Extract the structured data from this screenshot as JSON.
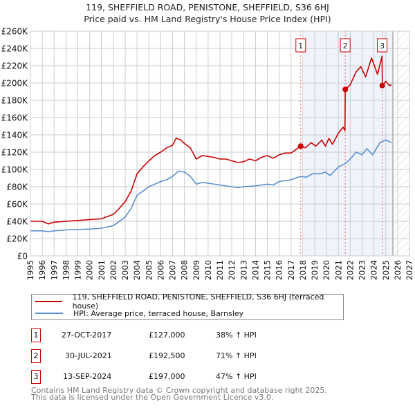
{
  "title_line1": "119, SHEFFIELD ROAD, PENISTONE, SHEFFIELD, S36 6HJ",
  "title_line2": "Price paid vs. HM Land Registry's House Price Index (HPI)",
  "colors": {
    "property": "#cc0000",
    "hpi": "#5b8fd0",
    "shade": "#eef3fc",
    "grid": "#cccccc"
  },
  "chart_data": {
    "type": "line",
    "title": "Price paid vs. HM Land Registry's House Price Index (HPI)",
    "xlim": [
      1995,
      2027
    ],
    "ylim": [
      0,
      260000
    ],
    "grid": true,
    "x_ticks": [
      "1995",
      "1996",
      "1997",
      "1998",
      "1999",
      "2000",
      "2001",
      "2002",
      "2003",
      "2004",
      "2005",
      "2006",
      "2007",
      "2008",
      "2009",
      "2010",
      "2011",
      "2012",
      "2013",
      "2014",
      "2015",
      "2016",
      "2017",
      "2018",
      "2019",
      "2020",
      "2021",
      "2022",
      "2023",
      "2024",
      "2025",
      "2026",
      "2027"
    ],
    "y_ticks": [
      {
        "v": 0,
        "label": "£0"
      },
      {
        "v": 20000,
        "label": "£20K"
      },
      {
        "v": 40000,
        "label": "£40K"
      },
      {
        "v": 60000,
        "label": "£60K"
      },
      {
        "v": 80000,
        "label": "£80K"
      },
      {
        "v": 100000,
        "label": "£100K"
      },
      {
        "v": 120000,
        "label": "£120K"
      },
      {
        "v": 140000,
        "label": "£140K"
      },
      {
        "v": 160000,
        "label": "£160K"
      },
      {
        "v": 180000,
        "label": "£180K"
      },
      {
        "v": 200000,
        "label": "£200K"
      },
      {
        "v": 220000,
        "label": "£220K"
      },
      {
        "v": 240000,
        "label": "£240K"
      },
      {
        "v": 260000,
        "label": "£260K"
      }
    ],
    "shaded_range": [
      2018.1,
      2025.6
    ],
    "forecast_start": 2025.6,
    "series": [
      {
        "name": "119, SHEFFIELD ROAD, PENISTONE, SHEFFIELD, S36 6HJ (terraced house)",
        "color": "#cc0000",
        "x": [
          1995,
          1996,
          1996.5,
          1997,
          1998,
          1999,
          2000,
          2001,
          2002,
          2002.5,
          2003,
          2003.5,
          2004,
          2004.5,
          2005,
          2005.5,
          2006,
          2006.5,
          2007,
          2007.3,
          2007.7,
          2008,
          2008.5,
          2009,
          2009.5,
          2010,
          2010.5,
          2011,
          2011.5,
          2012,
          2012.5,
          2013,
          2013.5,
          2014,
          2014.5,
          2015,
          2015.5,
          2016,
          2016.5,
          2017,
          2017.82,
          2018.2,
          2018.7,
          2019.1,
          2019.6,
          2019.9,
          2020.2,
          2020.5,
          2021,
          2021.4,
          2021.55,
          2021.58,
          2022,
          2022.5,
          2022.9,
          2023.3,
          2023.8,
          2024.3,
          2024.68,
          2024.71,
          2025,
          2025.3,
          2025.5
        ],
        "y": [
          40000,
          40000,
          37000,
          39000,
          40000,
          41000,
          42000,
          43000,
          48000,
          55000,
          63000,
          75000,
          95000,
          103000,
          110000,
          116000,
          120000,
          125000,
          128000,
          136000,
          134000,
          130000,
          125000,
          112000,
          116000,
          115000,
          114000,
          112000,
          112000,
          110000,
          108000,
          109000,
          112000,
          110000,
          114000,
          116000,
          113000,
          117000,
          119000,
          119000,
          127000,
          125000,
          131000,
          127000,
          134000,
          127000,
          136000,
          129000,
          142000,
          149000,
          145000,
          192500,
          198000,
          213000,
          219000,
          207000,
          229000,
          210000,
          231000,
          197000,
          202000,
          197000,
          198000
        ]
      },
      {
        "name": "HPI: Average price, terraced house, Barnsley",
        "color": "#5b8fd0",
        "x": [
          1995,
          1996,
          1996.5,
          1997,
          1998,
          2000,
          2001,
          2002,
          2003,
          2003.5,
          2004,
          2004.5,
          2005,
          2006,
          2006.5,
          2007,
          2007.5,
          2008,
          2008.5,
          2009,
          2009.5,
          2010,
          2011,
          2012,
          2012.5,
          2013,
          2014,
          2015,
          2015.5,
          2016,
          2017,
          2017.82,
          2018.3,
          2018.8,
          2019.5,
          2019.9,
          2020.3,
          2021,
          2021.6,
          2022,
          2022.5,
          2023,
          2023.4,
          2023.9,
          2024.5,
          2025,
          2025.5
        ],
        "y": [
          29000,
          29000,
          28000,
          29000,
          30000,
          31000,
          32000,
          35000,
          45000,
          55000,
          70000,
          75000,
          80000,
          86000,
          88000,
          92000,
          98000,
          97000,
          92000,
          83000,
          85000,
          84000,
          82000,
          80000,
          79000,
          80000,
          81000,
          83000,
          82000,
          86000,
          88000,
          92000,
          91000,
          95000,
          95000,
          97000,
          93000,
          103000,
          107000,
          112000,
          120000,
          117000,
          124000,
          117000,
          131000,
          134000,
          131000
        ]
      }
    ],
    "sales": [
      {
        "label": "1",
        "x": 2017.82,
        "y": 127000
      },
      {
        "label": "2",
        "x": 2021.58,
        "y": 192500
      },
      {
        "label": "3",
        "x": 2024.7,
        "y": 197000
      }
    ]
  },
  "legend": [
    {
      "label": "119, SHEFFIELD ROAD, PENISTONE, SHEFFIELD, S36 6HJ (terraced house)"
    },
    {
      "label": "HPI: Average price, terraced house, Barnsley"
    }
  ],
  "transactions": [
    {
      "num": "1",
      "date": "27-OCT-2017",
      "price": "£127,000",
      "hpi": "38% ↑ HPI"
    },
    {
      "num": "2",
      "date": "30-JUL-2021",
      "price": "£192,500",
      "hpi": "71% ↑ HPI"
    },
    {
      "num": "3",
      "date": "13-SEP-2024",
      "price": "£197,000",
      "hpi": "47% ↑ HPI"
    }
  ],
  "footer_line1": "Contains HM Land Registry data © Crown copyright and database right 2025.",
  "footer_line2": "This data is licensed under the Open Government Licence v3.0."
}
